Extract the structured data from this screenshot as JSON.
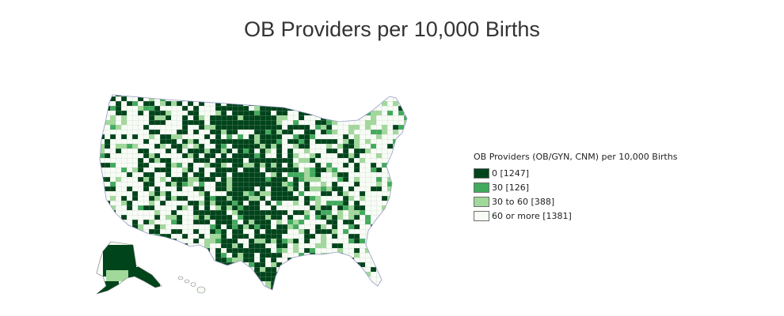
{
  "title": "OB Providers per 10,000 Births",
  "legend": {
    "title": "OB Providers (OB/GYN, CNM) per 10,000 Births",
    "items": [
      {
        "label": "0 [1247]",
        "color": "#00441b"
      },
      {
        "label": "30 [126]",
        "color": "#41ab5d"
      },
      {
        "label": "30 to 60 [388]",
        "color": "#a1d99b"
      },
      {
        "label": "60 or more [1381]",
        "color": "#f7fcf5"
      }
    ]
  }
}
